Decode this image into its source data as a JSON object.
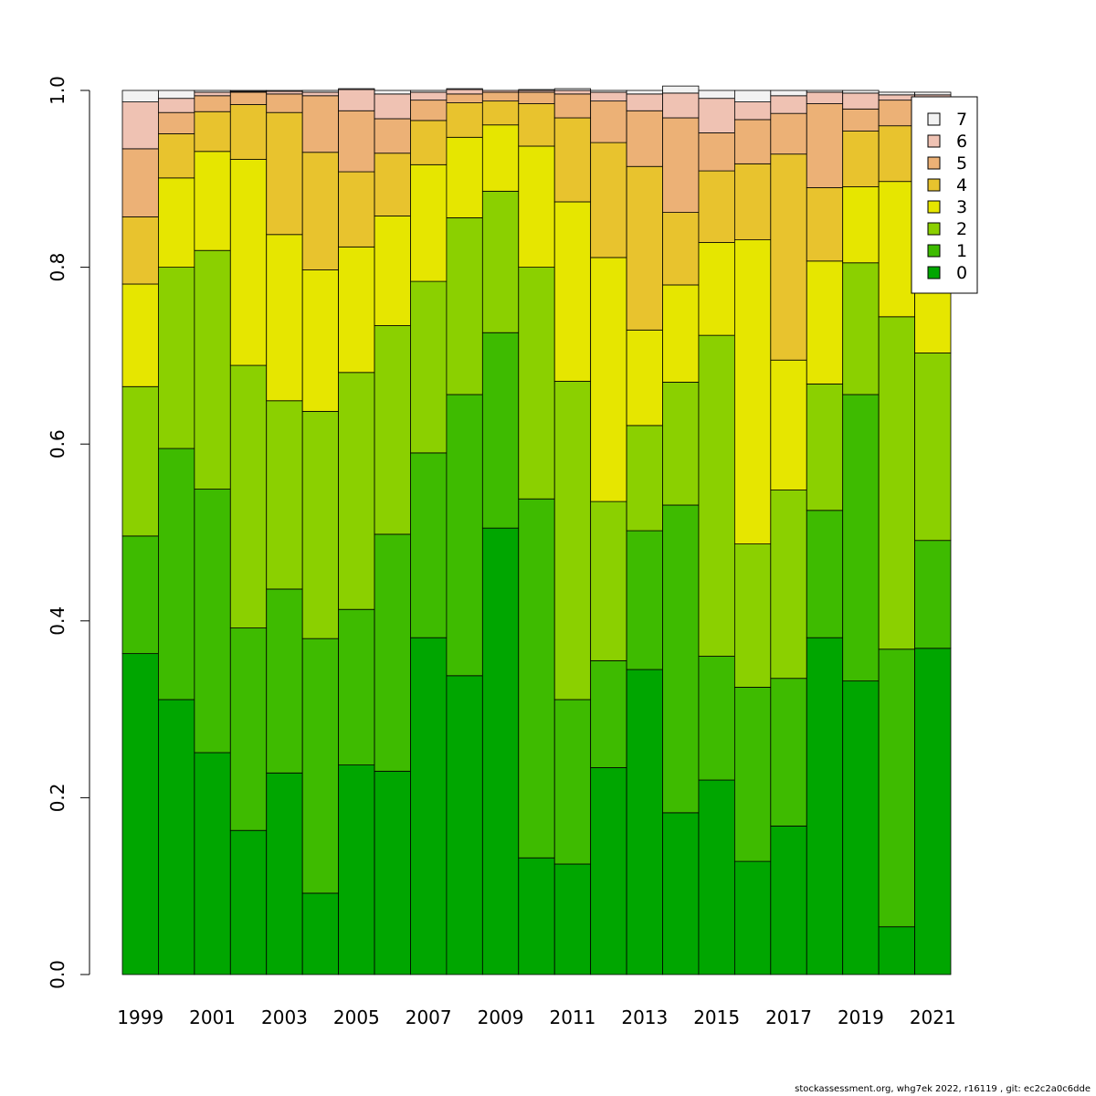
{
  "chart_data": {
    "type": "bar",
    "stacked": true,
    "categories": [
      "1999",
      "2000",
      "2001",
      "2002",
      "2003",
      "2004",
      "2005",
      "2006",
      "2007",
      "2008",
      "2009",
      "2010",
      "2011",
      "2012",
      "2013",
      "2014",
      "2015",
      "2016",
      "2017",
      "2018",
      "2019",
      "2020",
      "2021"
    ],
    "x_tick_labels": [
      "1999",
      "2001",
      "2003",
      "2005",
      "2007",
      "2009",
      "2011",
      "2013",
      "2015",
      "2017",
      "2019",
      "2021"
    ],
    "y_tick_labels": [
      "0.0",
      "0.2",
      "0.4",
      "0.6",
      "0.8",
      "1.0"
    ],
    "ylim": [
      0,
      1
    ],
    "legend_position": "top-right",
    "grid": false,
    "series": [
      {
        "name": "0",
        "color": "#00A600",
        "values": [
          0.363,
          0.311,
          0.251,
          0.163,
          0.228,
          0.092,
          0.237,
          0.23,
          0.381,
          0.338,
          0.505,
          0.132,
          0.125,
          0.234,
          0.345,
          0.183,
          0.22,
          0.128,
          0.168,
          0.381,
          0.332,
          0.054,
          0.369
        ]
      },
      {
        "name": "1",
        "color": "#3EBB00",
        "values": [
          0.133,
          0.284,
          0.298,
          0.229,
          0.208,
          0.288,
          0.176,
          0.268,
          0.209,
          0.318,
          0.221,
          0.406,
          0.186,
          0.121,
          0.157,
          0.348,
          0.14,
          0.197,
          0.167,
          0.144,
          0.324,
          0.314,
          0.122
        ]
      },
      {
        "name": "2",
        "color": "#8BD000",
        "values": [
          0.169,
          0.205,
          0.27,
          0.297,
          0.213,
          0.257,
          0.268,
          0.236,
          0.194,
          0.2,
          0.16,
          0.262,
          0.36,
          0.18,
          0.119,
          0.139,
          0.363,
          0.162,
          0.213,
          0.143,
          0.149,
          0.376,
          0.212
        ]
      },
      {
        "name": "3",
        "color": "#E6E600",
        "values": [
          0.116,
          0.101,
          0.112,
          0.233,
          0.188,
          0.16,
          0.142,
          0.124,
          0.132,
          0.091,
          0.075,
          0.137,
          0.203,
          0.276,
          0.108,
          0.11,
          0.105,
          0.344,
          0.147,
          0.139,
          0.086,
          0.153,
          0.099
        ]
      },
      {
        "name": "4",
        "color": "#E8C32E",
        "values": [
          0.076,
          0.05,
          0.045,
          0.062,
          0.138,
          0.133,
          0.085,
          0.071,
          0.05,
          0.039,
          0.027,
          0.048,
          0.095,
          0.13,
          0.185,
          0.082,
          0.081,
          0.086,
          0.233,
          0.083,
          0.063,
          0.063,
          0.102
        ]
      },
      {
        "name": "5",
        "color": "#ECB176",
        "values": [
          0.077,
          0.024,
          0.018,
          0.014,
          0.021,
          0.064,
          0.069,
          0.039,
          0.023,
          0.01,
          0.01,
          0.013,
          0.027,
          0.047,
          0.063,
          0.107,
          0.043,
          0.05,
          0.046,
          0.095,
          0.025,
          0.029,
          0.079
        ]
      },
      {
        "name": "6",
        "color": "#EFC2B3",
        "values": [
          0.053,
          0.016,
          0.004,
          0.001,
          0.003,
          0.004,
          0.024,
          0.028,
          0.009,
          0.005,
          0.002,
          0.002,
          0.004,
          0.01,
          0.019,
          0.028,
          0.039,
          0.02,
          0.02,
          0.013,
          0.018,
          0.006,
          0.012
        ]
      },
      {
        "name": "7",
        "color": "#F2F2F2",
        "values": [
          0.013,
          0.009,
          0.002,
          0.001,
          0.001,
          0.002,
          0.001,
          0.004,
          0.002,
          0.001,
          0.0,
          0.001,
          0.002,
          0.002,
          0.004,
          0.008,
          0.009,
          0.013,
          0.006,
          0.002,
          0.003,
          0.003,
          0.003
        ]
      }
    ]
  },
  "footer": "stockassessment.org, whg7ek  2022, r16119 , git: ec2c2a0c6dde"
}
